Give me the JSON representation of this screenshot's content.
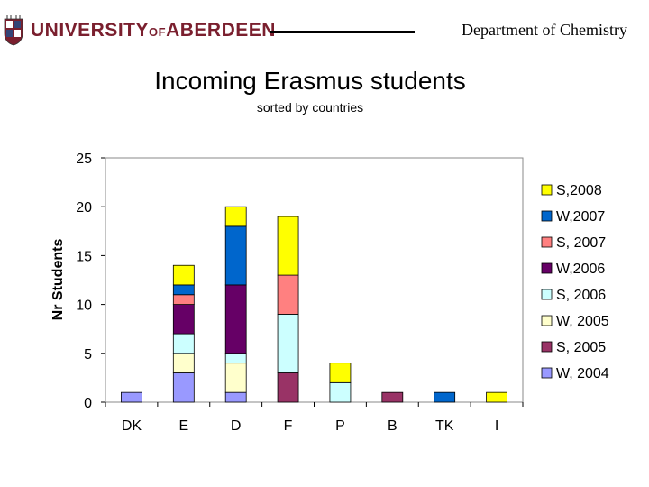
{
  "header": {
    "university_main": "UNIVERSITY",
    "university_of": "OF",
    "university_city": "ABERDEEN",
    "department": "Department of Chemistry"
  },
  "colors": {
    "brand": "#7a1f2e"
  },
  "chart_data": {
    "type": "bar",
    "stacked": true,
    "title": "Incoming Erasmus students",
    "subtitle": "sorted by countries",
    "xlabel": "",
    "ylabel": "Nr Students",
    "ylim": [
      0,
      25
    ],
    "yticks": [
      0,
      5,
      10,
      15,
      20,
      25
    ],
    "grid": false,
    "legend": "right",
    "categories": [
      "DK",
      "E",
      "D",
      "F",
      "P",
      "B",
      "TK",
      "I"
    ],
    "series": [
      {
        "name": "W, 2004",
        "color": "#9999ff",
        "values": [
          1,
          3,
          1,
          0,
          0,
          0,
          0,
          0
        ]
      },
      {
        "name": "S, 2005",
        "color": "#993366",
        "values": [
          0,
          0,
          0,
          3,
          0,
          1,
          0,
          0
        ]
      },
      {
        "name": "W, 2005",
        "color": "#ffffcc",
        "values": [
          0,
          2,
          3,
          0,
          0,
          0,
          0,
          0
        ]
      },
      {
        "name": "S, 2006",
        "color": "#ccffff",
        "values": [
          0,
          2,
          1,
          6,
          2,
          0,
          0,
          0
        ]
      },
      {
        "name": "W,2006",
        "color": "#660066",
        "values": [
          0,
          3,
          7,
          0,
          0,
          0,
          0,
          0
        ]
      },
      {
        "name": "S, 2007",
        "color": "#ff8080",
        "values": [
          0,
          1,
          0,
          4,
          0,
          0,
          0,
          0
        ]
      },
      {
        "name": "W,2007",
        "color": "#0066cc",
        "values": [
          0,
          1,
          6,
          0,
          0,
          0,
          1,
          0
        ]
      },
      {
        "name": "S,2008",
        "color": "#ffff00",
        "values": [
          0,
          2,
          2,
          6,
          2,
          0,
          0,
          1
        ]
      }
    ]
  }
}
